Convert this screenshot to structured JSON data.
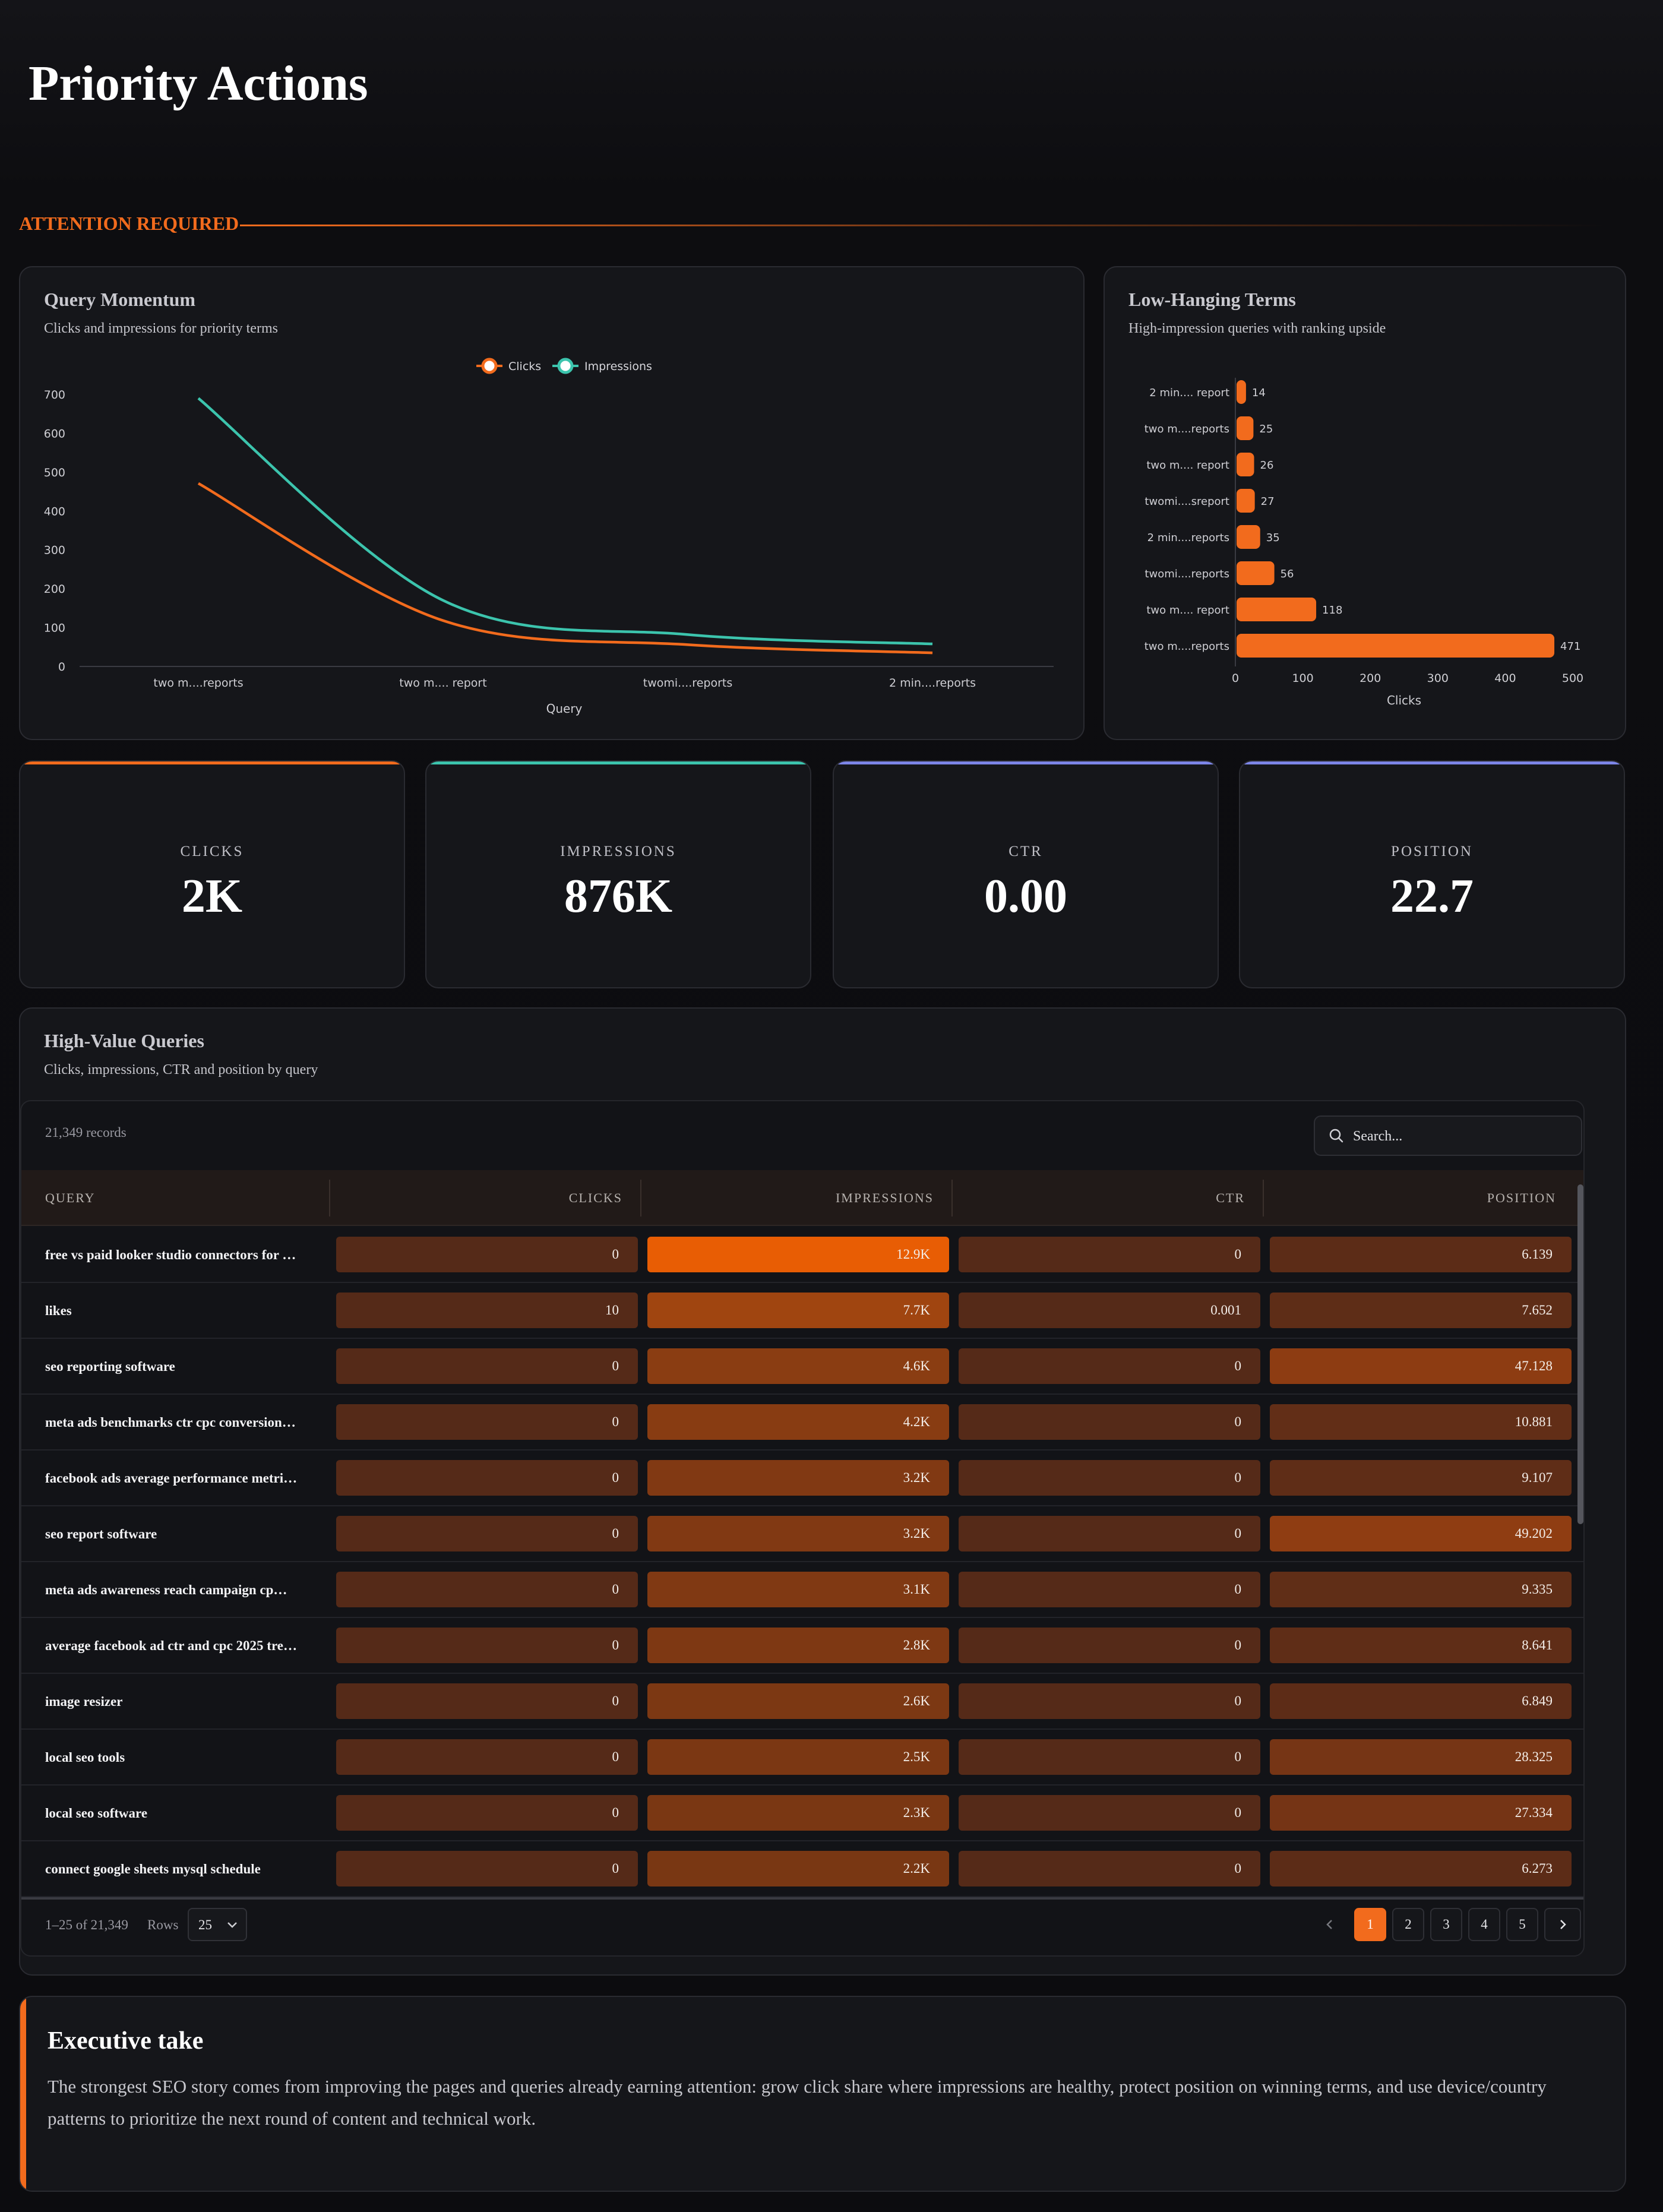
{
  "page": {
    "title": "Priority Actions",
    "section_label": "ATTENTION REQUIRED"
  },
  "colors": {
    "accent": "#f26b1d",
    "clicks": "#f26b1d",
    "impressions": "#3cc4ad",
    "kpi_ctr": "#7d86e8",
    "kpi_position": "#7d86e8"
  },
  "momentum": {
    "title": "Query Momentum",
    "subtitle": "Clicks and impressions for priority terms"
  },
  "terms": {
    "title": "Low-Hanging Terms",
    "subtitle": "High-impression queries with ranking upside"
  },
  "chart_data": [
    {
      "type": "line",
      "title": "Query Momentum",
      "xlabel": "Query",
      "ylabel": "",
      "x": [
        "two m....reports",
        "two m.... report",
        "twomi....reports",
        "2 min....reports"
      ],
      "series": [
        {
          "name": "Clicks",
          "values": [
            471,
            118,
            56,
            35
          ],
          "color": "#f26b1d"
        },
        {
          "name": "Impressions",
          "values": [
            690,
            170,
            82,
            58
          ],
          "color": "#3cc4ad"
        }
      ],
      "ylim": [
        0,
        700
      ],
      "yticks": [
        0,
        100,
        200,
        300,
        400,
        500,
        600,
        700
      ],
      "legend": "top-center"
    },
    {
      "type": "bar",
      "orientation": "horizontal",
      "title": "Low-Hanging Terms",
      "xlabel": "Clicks",
      "ylabel": "",
      "categories": [
        "2 min.... report",
        "two m....reports",
        "two m.... report",
        "twomi....sreport",
        "2 min....reports",
        "twomi....reports",
        "two m.... report",
        "two m....reports"
      ],
      "values": [
        14,
        25,
        26,
        27,
        35,
        56,
        118,
        471
      ],
      "xlim": [
        0,
        500
      ],
      "xticks": [
        0,
        100,
        200,
        300,
        400,
        500
      ],
      "color": "#f26b1d"
    }
  ],
  "kpis": [
    {
      "label": "CLICKS",
      "value": "2K",
      "color": "#f26b1d"
    },
    {
      "label": "IMPRESSIONS",
      "value": "876K",
      "color": "#3cc4ad"
    },
    {
      "label": "CTR",
      "value": "0.00",
      "color": "#7d86e8"
    },
    {
      "label": "POSITION",
      "value": "22.7",
      "color": "#7d86e8"
    }
  ],
  "table": {
    "title": "High-Value Queries",
    "subtitle": "Clicks, impressions, CTR and position by query",
    "records": "21,349 records",
    "search_placeholder": "Search...",
    "columns": [
      "QUERY",
      "CLICKS",
      "IMPRESSIONS",
      "CTR",
      "POSITION"
    ],
    "rows": [
      {
        "query": "free vs paid looker studio connectors for …",
        "clicks": "0",
        "impressions": "12.9K",
        "ctr": "0",
        "position": "6.139",
        "imp_level": 1.0,
        "pos_level": 0.12
      },
      {
        "query": "likes",
        "clicks": "10",
        "impressions": "7.7K",
        "ctr": "0.001",
        "position": "7.652",
        "imp_level": 0.6,
        "pos_level": 0.15
      },
      {
        "query": "seo reporting software",
        "clicks": "0",
        "impressions": "4.6K",
        "ctr": "0",
        "position": "47.128",
        "imp_level": 0.36,
        "pos_level": 0.96
      },
      {
        "query": "meta ads benchmarks ctr cpc conversion…",
        "clicks": "0",
        "impressions": "4.2K",
        "ctr": "0",
        "position": "10.881",
        "imp_level": 0.33,
        "pos_level": 0.22
      },
      {
        "query": "facebook ads average performance metri…",
        "clicks": "0",
        "impressions": "3.2K",
        "ctr": "0",
        "position": "9.107",
        "imp_level": 0.25,
        "pos_level": 0.18
      },
      {
        "query": "seo report software",
        "clicks": "0",
        "impressions": "3.2K",
        "ctr": "0",
        "position": "49.202",
        "imp_level": 0.25,
        "pos_level": 1.0
      },
      {
        "query": "meta ads awareness reach campaign cp…",
        "clicks": "0",
        "impressions": "3.1K",
        "ctr": "0",
        "position": "9.335",
        "imp_level": 0.24,
        "pos_level": 0.19
      },
      {
        "query": "average facebook ad ctr and cpc 2025 tre…",
        "clicks": "0",
        "impressions": "2.8K",
        "ctr": "0",
        "position": "8.641",
        "imp_level": 0.22,
        "pos_level": 0.17
      },
      {
        "query": "image resizer",
        "clicks": "0",
        "impressions": "2.6K",
        "ctr": "0",
        "position": "6.849",
        "imp_level": 0.2,
        "pos_level": 0.13
      },
      {
        "query": "local seo tools",
        "clicks": "0",
        "impressions": "2.5K",
        "ctr": "0",
        "position": "28.325",
        "imp_level": 0.19,
        "pos_level": 0.57
      },
      {
        "query": "local seo software",
        "clicks": "0",
        "impressions": "2.3K",
        "ctr": "0",
        "position": "27.334",
        "imp_level": 0.18,
        "pos_level": 0.55
      },
      {
        "query": "connect google sheets mysql schedule",
        "clicks": "0",
        "impressions": "2.2K",
        "ctr": "0",
        "position": "6.273",
        "imp_level": 0.17,
        "pos_level": 0.12
      }
    ],
    "footer": {
      "range": "1–25 of 21,349",
      "rows_label": "Rows",
      "rows_value": "25",
      "pages": [
        "1",
        "2",
        "3",
        "4",
        "5"
      ],
      "current_page": "1"
    }
  },
  "executive": {
    "title": "Executive take",
    "body": "The strongest SEO story comes from improving the pages and queries already earning attention: grow click share where impressions are healthy, protect position on winning terms, and use device/country patterns to prioritize the next round of content and technical work."
  }
}
